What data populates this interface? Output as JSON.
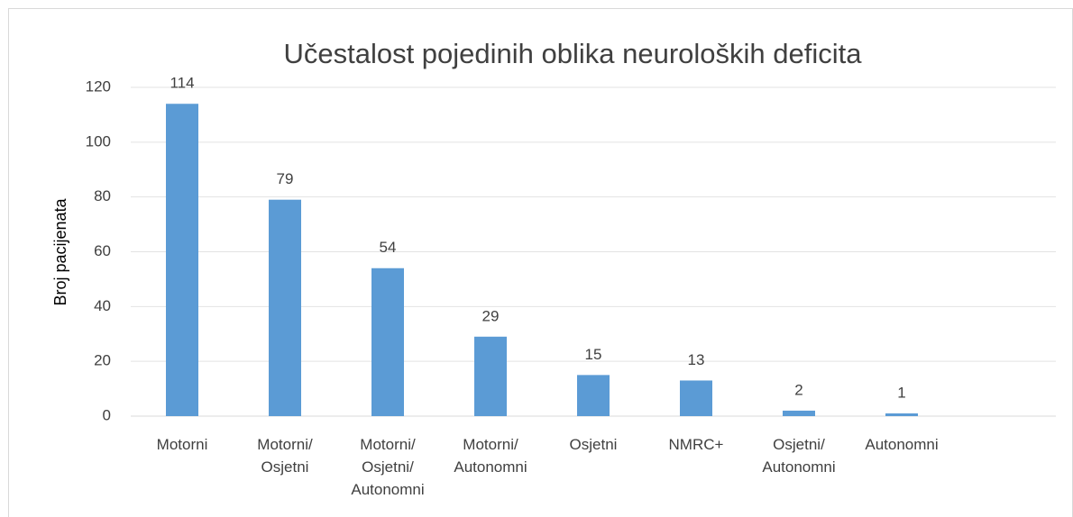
{
  "chart_data": {
    "type": "bar",
    "title": "Učestalost pojedinih oblika neuroloških deficita",
    "y_label": "Broj pacijenata",
    "categories": [
      "Motorni",
      "Motorni/ Osjetni",
      "Motorni/ Osjetni/ Autonomni",
      "Motorni/ Autonomni",
      "Osjetni",
      "NMRC+",
      "Osjetni/ Autonomni",
      "Autonomni",
      null
    ],
    "values": [
      114,
      79,
      54,
      29,
      15,
      13,
      2,
      1,
      null
    ],
    "color": "#5b9bd5",
    "ylim": [
      0,
      120
    ],
    "yticks": [
      0,
      20,
      40,
      60,
      80,
      100,
      120
    ],
    "grid": true
  }
}
